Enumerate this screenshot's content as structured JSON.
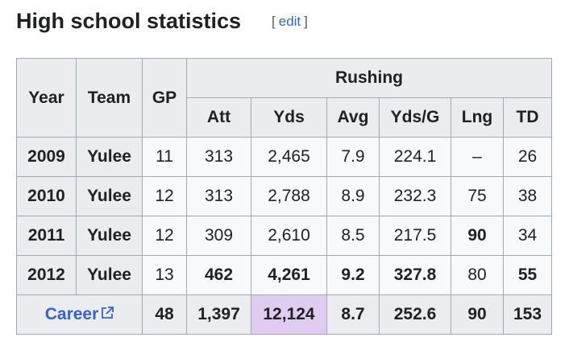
{
  "heading": "High school statistics",
  "edit_label": "edit",
  "table": {
    "headers": {
      "year": "Year",
      "team": "Team",
      "gp": "GP",
      "group": "Rushing",
      "cols": [
        "Att",
        "Yds",
        "Avg",
        "Yds/G",
        "Lng",
        "TD"
      ]
    },
    "rows": [
      {
        "year": "2009",
        "team": "Yulee",
        "gp": "11",
        "vals": [
          "313",
          "2,465",
          "7.9",
          "224.1",
          "–",
          "26"
        ],
        "bold": [
          false,
          false,
          false,
          false,
          false,
          false
        ]
      },
      {
        "year": "2010",
        "team": "Yulee",
        "gp": "12",
        "vals": [
          "313",
          "2,788",
          "8.9",
          "232.3",
          "75",
          "38"
        ],
        "bold": [
          false,
          false,
          false,
          false,
          false,
          false
        ]
      },
      {
        "year": "2011",
        "team": "Yulee",
        "gp": "12",
        "vals": [
          "309",
          "2,610",
          "8.5",
          "217.5",
          "90",
          "34"
        ],
        "bold": [
          false,
          false,
          false,
          false,
          true,
          false
        ]
      },
      {
        "year": "2012",
        "team": "Yulee",
        "gp": "13",
        "vals": [
          "462",
          "4,261",
          "9.2",
          "327.8",
          "80",
          "55"
        ],
        "bold": [
          true,
          true,
          true,
          true,
          false,
          true
        ]
      }
    ],
    "career": {
      "label": "Career",
      "gp": "48",
      "vals": [
        "1,397",
        "12,124",
        "8.7",
        "252.6",
        "90",
        "153"
      ],
      "highlight_index": 1
    }
  },
  "colors": {
    "link": "#3366cc",
    "highlight": "#e0ccf0",
    "header_bg": "#eaecf0"
  }
}
